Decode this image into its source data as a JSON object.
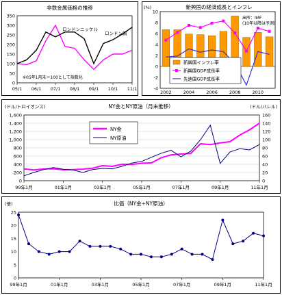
{
  "chart_data": [
    {
      "type": "line",
      "title": "非鉄金属価格の推移",
      "ylim": [
        0,
        350
      ],
      "yticks": [
        "0",
        "50",
        "100",
        "150",
        "200",
        "250",
        "300",
        "350"
      ],
      "x": [
        "05/1",
        "05/7",
        "06/1",
        "06/7",
        "07/1",
        "07/7",
        "08/1",
        "08/7",
        "09/1",
        "09/7",
        "10/1",
        "10/7",
        "11/1"
      ],
      "xtick_labels": [
        "05/1",
        "06/1",
        "07/1",
        "08/1",
        "09/1",
        "10/1",
        "11/1"
      ],
      "series": [
        {
          "name": "ロンドンニッケル",
          "color": "#ff00ff",
          "values": [
            100,
            95,
            115,
            220,
            300,
            190,
            180,
            120,
            70,
            120,
            150,
            150,
            170
          ]
        },
        {
          "name": "ロンドン銅",
          "color": "#000000",
          "values": [
            100,
            120,
            170,
            265,
            240,
            265,
            265,
            230,
            100,
            205,
            225,
            255,
            290
          ]
        }
      ],
      "annotation": "※05年1月末＝100として指数化",
      "grid": false
    },
    {
      "type": "bar",
      "title": "新興国の経済成長とインフレ",
      "ylabel": "(%)",
      "ylim": [
        -4,
        10
      ],
      "yticks": [
        "-4",
        "-2",
        "0",
        "2",
        "4",
        "6",
        "8",
        "10"
      ],
      "categories": [
        "2002",
        "2003",
        "2004",
        "2005",
        "2006",
        "2007",
        "2008",
        "2009",
        "2010",
        "2011"
      ],
      "xtick_labels": [
        "2002",
        "2004",
        "2006",
        "2008",
        "2010"
      ],
      "series": [
        {
          "name": "新興国インフレ率",
          "color": "#ff9900",
          "type": "bar",
          "values": [
            6.7,
            6.7,
            5.9,
            5.8,
            5.6,
            6.4,
            9.2,
            5.3,
            6.2,
            5.4
          ]
        },
        {
          "name": "新興国GDP成長率",
          "color": "#ff00ff",
          "type": "line",
          "values": [
            4.8,
            6.2,
            7.5,
            7.1,
            7.9,
            8.3,
            6.1,
            2.8,
            7.0,
            6.4
          ]
        },
        {
          "name": "先進国GDP成長率",
          "color": "#3333cc",
          "type": "line",
          "values": [
            1.7,
            1.9,
            3.2,
            2.6,
            3.0,
            2.7,
            0.5,
            -3.4,
            2.7,
            2.2
          ]
        }
      ],
      "annotation": "出所：IMF\n(10年以降は予測)"
    },
    {
      "type": "line",
      "title": "NY金とNY原油（月末推移）",
      "ylabel_left": "(ドル/トロイオンス)",
      "ylabel_right": "(ドル/バレル)",
      "ylim_left": [
        0,
        1600
      ],
      "ylim_right": [
        0,
        160
      ],
      "yticks_left": [
        "0",
        "200",
        "400",
        "600",
        "800",
        "1,000",
        "1,200",
        "1,400",
        "1,600"
      ],
      "yticks_right": [
        "0",
        "20",
        "40",
        "60",
        "80",
        "100",
        "120",
        "140",
        "160"
      ],
      "xtick_labels": [
        "99年1月",
        "01年1月",
        "03年1月",
        "05年1月",
        "07年1月",
        "09年1月",
        "11年1月"
      ],
      "x_years": [
        1999,
        1999.5,
        2000,
        2000.5,
        2001,
        2001.5,
        2002,
        2002.5,
        2003,
        2003.5,
        2004,
        2004.5,
        2005,
        2005.5,
        2006,
        2006.5,
        2007,
        2007.5,
        2008,
        2008.5,
        2009,
        2009.5,
        2010,
        2010.5,
        2011
      ],
      "series": [
        {
          "name": "NY金",
          "axis": "left",
          "color": "#ff00ff",
          "values": [
            287,
            262,
            285,
            290,
            266,
            270,
            282,
            305,
            367,
            350,
            400,
            395,
            425,
            435,
            560,
            630,
            650,
            665,
            900,
            880,
            920,
            950,
            1110,
            1240,
            1400
          ]
        },
        {
          "name": "NY原油",
          "axis": "right",
          "color": "#000080",
          "values": [
            12,
            20,
            27,
            32,
            28,
            26,
            20,
            27,
            30,
            29,
            35,
            43,
            47,
            57,
            67,
            74,
            58,
            72,
            100,
            135,
            42,
            70,
            78,
            75,
            88
          ]
        }
      ],
      "grid": true
    },
    {
      "type": "line",
      "title": "比価（NY金÷NY原油）",
      "ylabel": "(倍)",
      "ylim": [
        0,
        25
      ],
      "yticks": [
        "0",
        "5",
        "10",
        "15",
        "20",
        "25"
      ],
      "xtick_labels": [
        "99年1月",
        "01年1月",
        "03年1月",
        "05年1月",
        "07年1月",
        "09年1月",
        "11年1月"
      ],
      "x_years": [
        1999,
        1999.5,
        2000,
        2000.5,
        2001,
        2001.5,
        2002,
        2002.5,
        2003,
        2003.5,
        2004,
        2004.5,
        2005,
        2005.5,
        2006,
        2006.5,
        2007,
        2007.5,
        2008,
        2008.5,
        2009,
        2009.5,
        2010,
        2010.5,
        2011
      ],
      "series": [
        {
          "name": "比価",
          "color": "#000080",
          "values": [
            24,
            13,
            10,
            9,
            10,
            10,
            14,
            12,
            12,
            12,
            11,
            9,
            9,
            8,
            8,
            9,
            11,
            9,
            9,
            7,
            22,
            13,
            14,
            17,
            16
          ]
        }
      ],
      "grid": false
    }
  ]
}
